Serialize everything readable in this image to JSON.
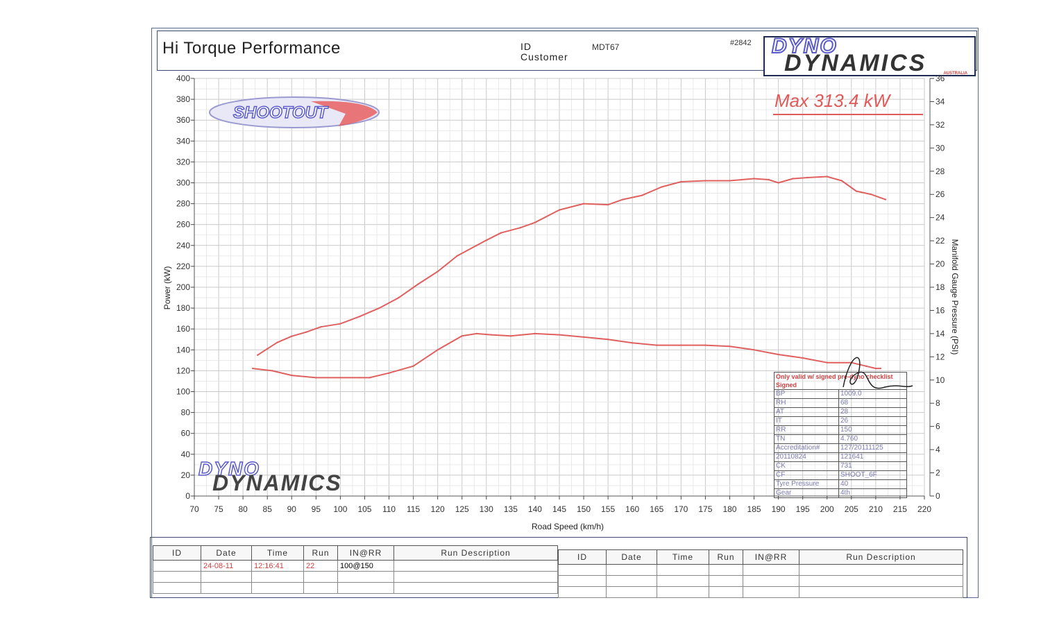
{
  "header": {
    "title": "Hi Torque Performance",
    "id_label": "ID",
    "customer_label": "Customer",
    "id_value": "MDT67",
    "sheet_number": "#2842",
    "logo_line1": "DYNO",
    "logo_line2": "DYNAMICS",
    "logo_sub": "AUSTRALIA"
  },
  "colors": {
    "curve": "#e06060",
    "grid": "#c9c9c9",
    "frame": "#3c4b6e"
  },
  "watermark": {
    "shootout": "SHOOTOUT",
    "dyno": "DYNO",
    "dynamics": "DYNAMICS"
  },
  "max_label": "Max 313.4 kW",
  "chart_data": {
    "type": "line",
    "xlabel": "Road Speed (km/h)",
    "ylabel": "Power (kW)",
    "y2label": "Manifold Gauge Pressure (PSI)",
    "xlim": [
      70,
      220
    ],
    "ylim": [
      0,
      400
    ],
    "y2lim": [
      0,
      36
    ],
    "x_ticks": [
      70,
      75,
      80,
      85,
      90,
      95,
      100,
      105,
      110,
      115,
      120,
      125,
      130,
      135,
      140,
      145,
      150,
      155,
      160,
      165,
      170,
      175,
      180,
      185,
      190,
      195,
      200,
      205,
      210,
      215,
      220
    ],
    "y_ticks": [
      0,
      20,
      40,
      60,
      80,
      100,
      120,
      140,
      160,
      180,
      200,
      220,
      240,
      260,
      280,
      300,
      320,
      340,
      360,
      380,
      400
    ],
    "y2_ticks": [
      0,
      2,
      4,
      6,
      8,
      10,
      12,
      14,
      16,
      18,
      20,
      22,
      24,
      26,
      28,
      30,
      32,
      34,
      36
    ],
    "grid": true,
    "series": [
      {
        "axis": "left",
        "x": [
          83,
          85,
          87,
          90,
          93,
          96,
          100,
          104,
          108,
          112,
          116,
          120,
          124,
          128,
          130,
          133,
          137,
          140,
          145,
          150,
          155,
          158,
          162,
          166,
          170,
          175,
          180,
          185,
          188,
          190,
          193,
          196,
          200,
          203,
          206,
          209,
          212
        ],
        "values": [
          135,
          141,
          147,
          153,
          157,
          162,
          165,
          172,
          180,
          190,
          203,
          215,
          230,
          240,
          245,
          252,
          257,
          262,
          274,
          280,
          279,
          284,
          288,
          296,
          301,
          302,
          302,
          304,
          303,
          300,
          304,
          305,
          306,
          302,
          292,
          289,
          284
        ]
      },
      {
        "axis": "right",
        "x": [
          82,
          86,
          90,
          95,
          100,
          104,
          106,
          110,
          115,
          120,
          125,
          128,
          131,
          135,
          140,
          145,
          150,
          155,
          160,
          165,
          170,
          175,
          180,
          185,
          190,
          195,
          200,
          205,
          208,
          210,
          211
        ],
        "values": [
          11.0,
          10.8,
          10.4,
          10.2,
          10.2,
          10.2,
          10.2,
          10.6,
          11.2,
          12.6,
          13.8,
          14.0,
          13.9,
          13.8,
          14.0,
          13.9,
          13.7,
          13.5,
          13.2,
          13.0,
          13.0,
          13.0,
          12.9,
          12.6,
          12.2,
          11.9,
          11.5,
          11.5,
          11.2,
          11.0,
          11.0
        ]
      }
    ]
  },
  "info_box": {
    "note": "Only valid w/ signed pre-dyno checklist Signed",
    "rows": [
      [
        "BP",
        "1009.0"
      ],
      [
        "RH",
        "68"
      ],
      [
        "AT",
        "28"
      ],
      [
        "IT",
        "26"
      ],
      [
        "RR",
        "150"
      ],
      [
        "TN",
        "4.760"
      ],
      [
        "Accreditation#",
        "127/20111125"
      ],
      [
        "20110824",
        "121641"
      ],
      [
        "CK",
        "731"
      ],
      [
        "CF",
        "SHOOT_6F"
      ],
      [
        "Tyre Pressure",
        "40"
      ],
      [
        "Gear",
        "4th"
      ]
    ]
  },
  "runs": {
    "headers": [
      "ID",
      "Date",
      "Time",
      "Run",
      "IN@RR",
      "Run Description"
    ],
    "left_rows": [
      [
        "",
        "24-08-11",
        "12:16:41",
        "22",
        "100@150",
        ""
      ],
      [
        "",
        "",
        "",
        "",
        "",
        ""
      ],
      [
        "",
        "",
        "",
        "",
        "",
        ""
      ]
    ],
    "right_rows": [
      [
        "",
        "",
        "",
        "",
        "",
        ""
      ],
      [
        "",
        "",
        "",
        "",
        "",
        ""
      ],
      [
        "",
        "",
        "",
        "",
        "",
        ""
      ]
    ]
  }
}
